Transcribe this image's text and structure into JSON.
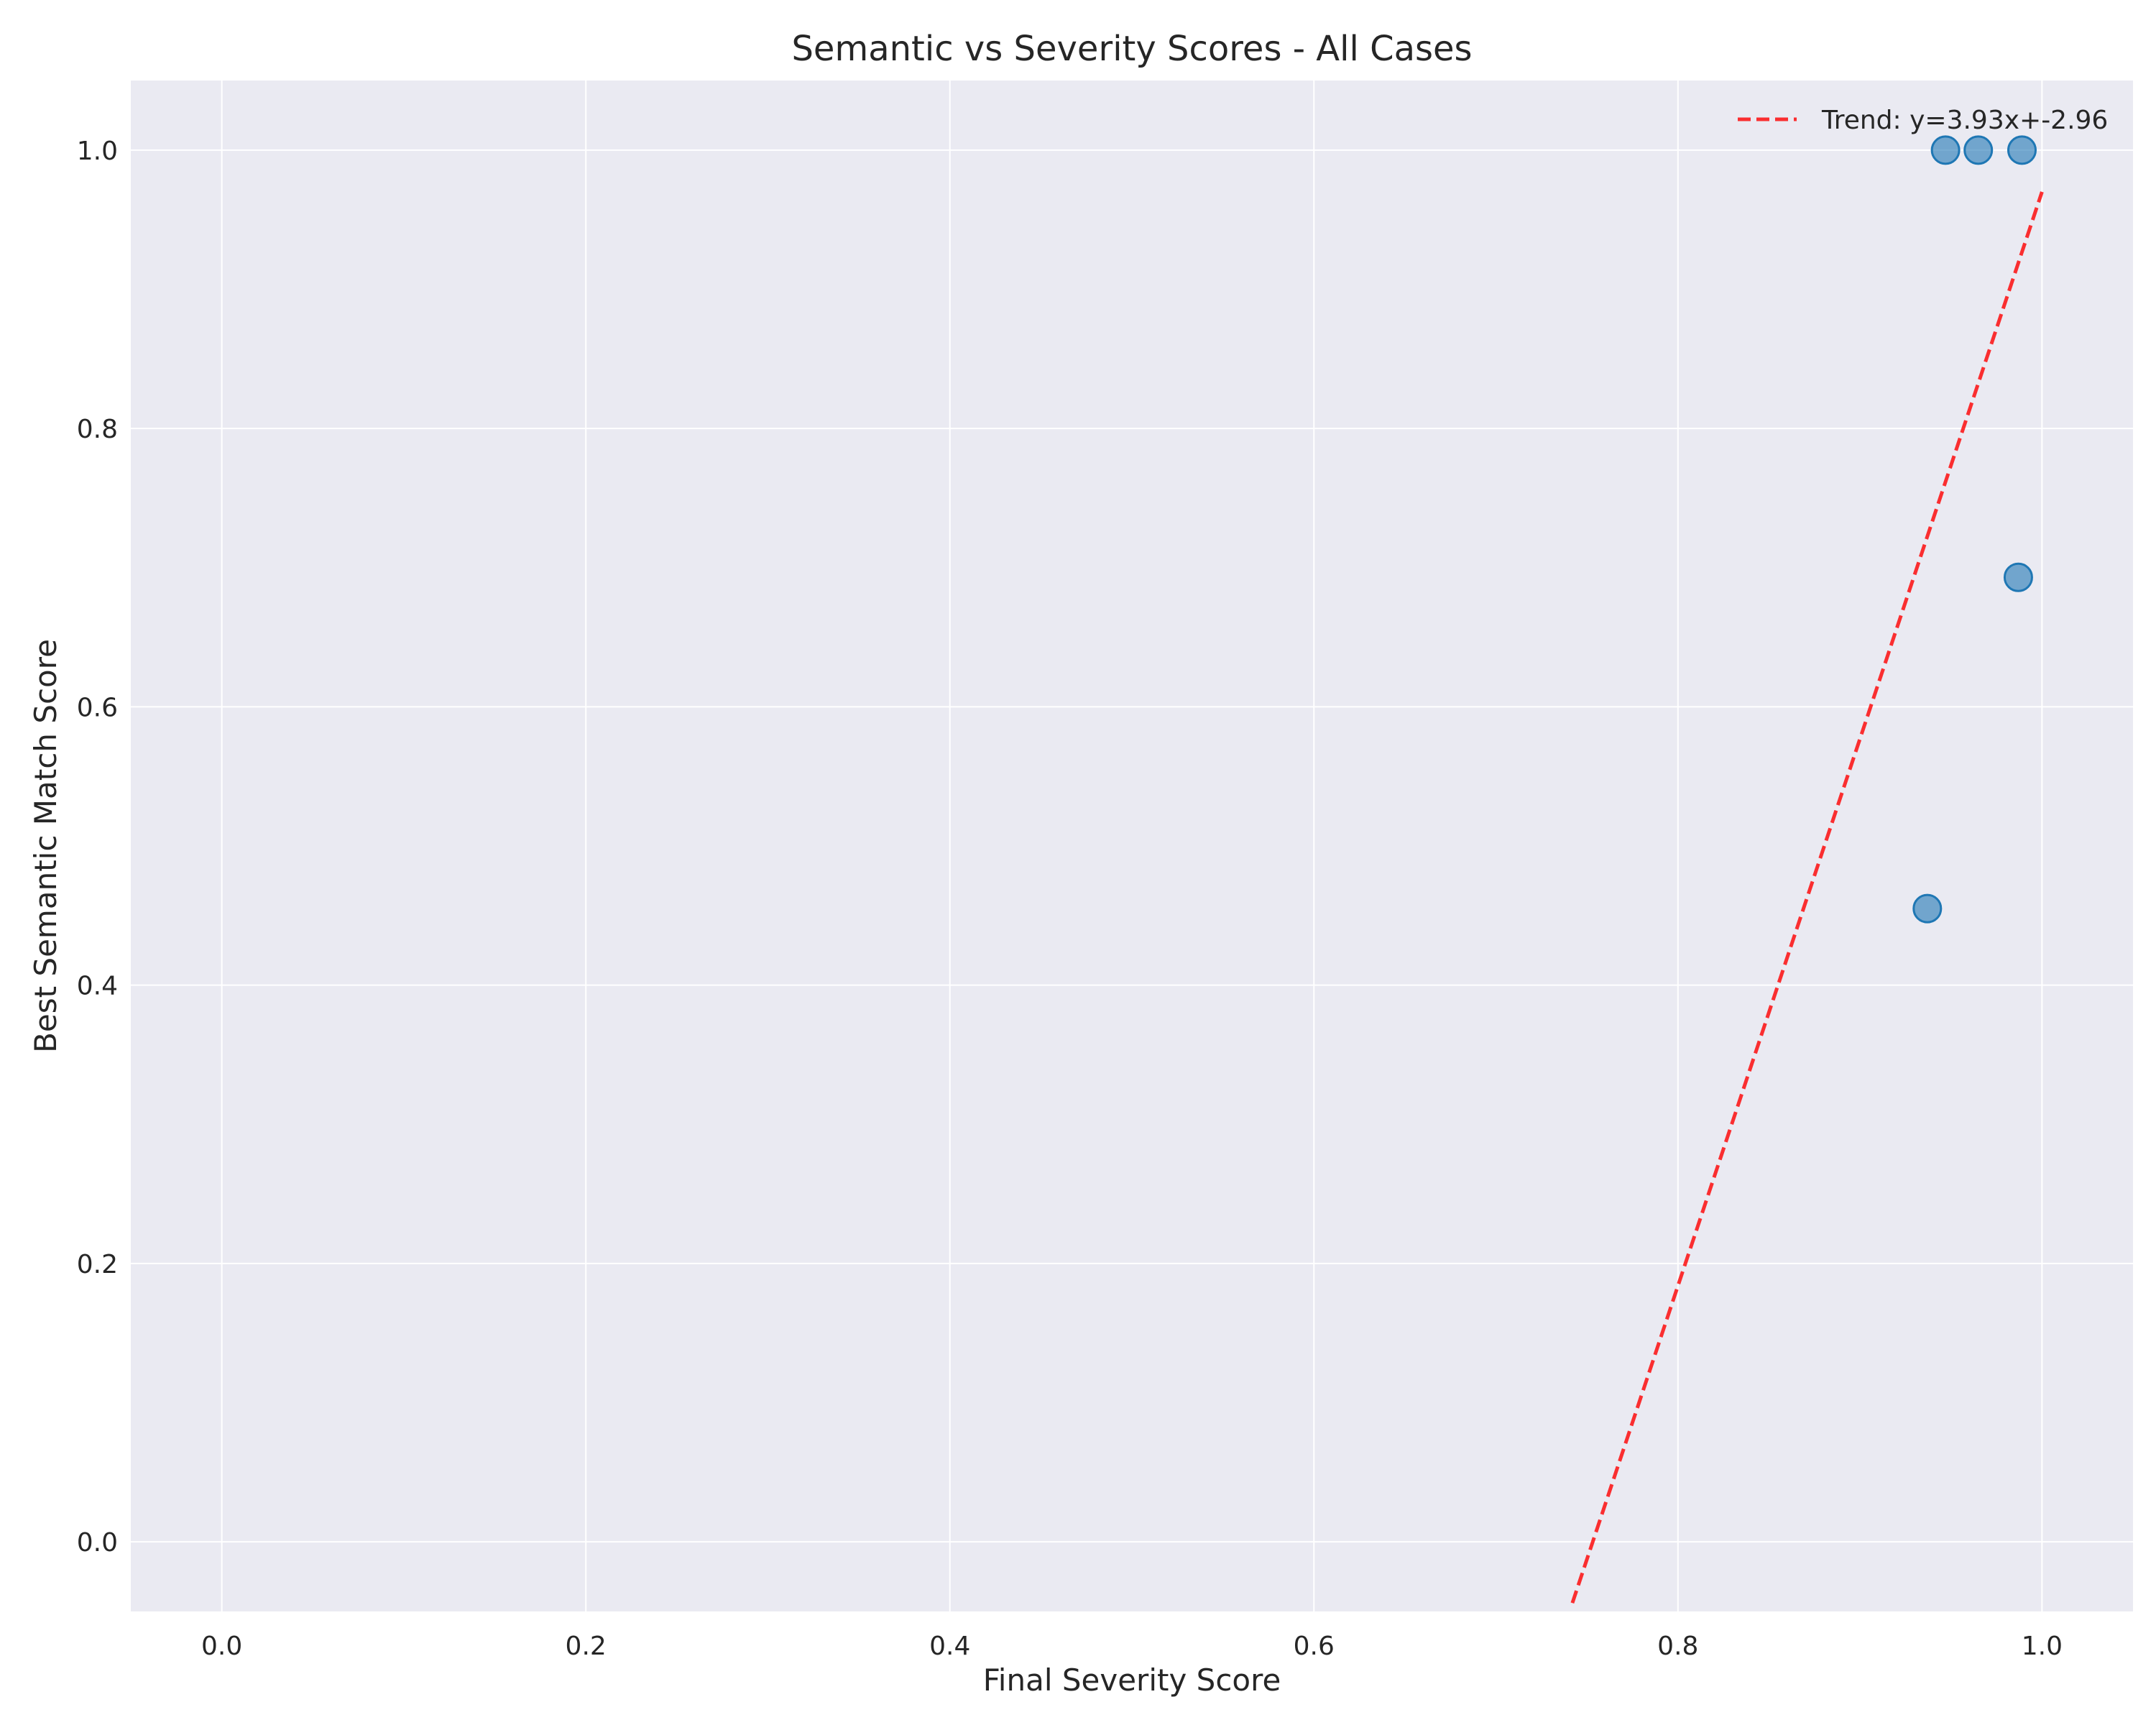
{
  "chart_data": {
    "type": "scatter",
    "title": "Semantic vs Severity Scores - All Cases",
    "xlabel": "Final Severity Score",
    "ylabel": "Best Semantic Match Score",
    "xlim": [
      -0.05,
      1.05
    ],
    "ylim": [
      -0.05,
      1.05
    ],
    "xticks": [
      0.0,
      0.2,
      0.4,
      0.6,
      0.8,
      1.0
    ],
    "yticks": [
      0.0,
      0.2,
      0.4,
      0.6,
      0.8,
      1.0
    ],
    "grid": true,
    "legend_position": "top-right",
    "points": {
      "x": [
        0.937,
        0.947,
        0.965,
        0.987,
        0.989
      ],
      "y": [
        0.455,
        1.0,
        1.0,
        0.693,
        1.0
      ]
    },
    "trend": {
      "label": "Trend: y=3.93x+-2.96",
      "slope": 3.93,
      "intercept": -2.96,
      "x_range": [
        0.742,
        1.0
      ]
    },
    "colors": {
      "background": "#EAEAF2",
      "grid": "#ffffff",
      "point_fill": "#1f77b4",
      "point_edge": "#1f77b4",
      "trend": "#ff0000"
    }
  }
}
